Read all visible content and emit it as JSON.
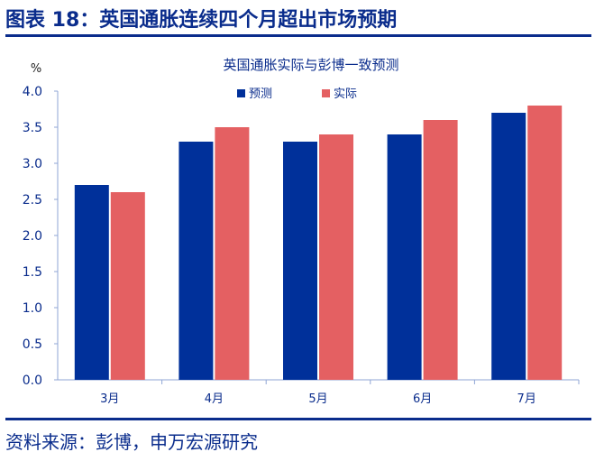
{
  "header": {
    "title": "图表 18：英国通胀连续四个月超出市场预期"
  },
  "footer": {
    "source": "资料来源：彭博，申万宏源研究"
  },
  "colors": {
    "forecast": "#00309a",
    "actual": "#e46062",
    "axis": "#8fa6d6",
    "text": "#0a2c8c"
  },
  "chart_data": {
    "type": "bar",
    "title": "英国通胀实际与彭博一致预测",
    "ylabel": "%",
    "ylim": [
      0,
      4.0
    ],
    "yticks": [
      "0.0",
      "0.5",
      "1.0",
      "1.5",
      "2.0",
      "2.5",
      "3.0",
      "3.5",
      "4.0"
    ],
    "categories": [
      "3月",
      "4月",
      "5月",
      "6月",
      "7月"
    ],
    "series": [
      {
        "name": "预测",
        "values": [
          2.7,
          3.3,
          3.3,
          3.4,
          3.7
        ]
      },
      {
        "name": "实际",
        "values": [
          2.6,
          3.5,
          3.4,
          3.6,
          3.8
        ]
      }
    ],
    "legend": "top-center",
    "grid": false
  }
}
